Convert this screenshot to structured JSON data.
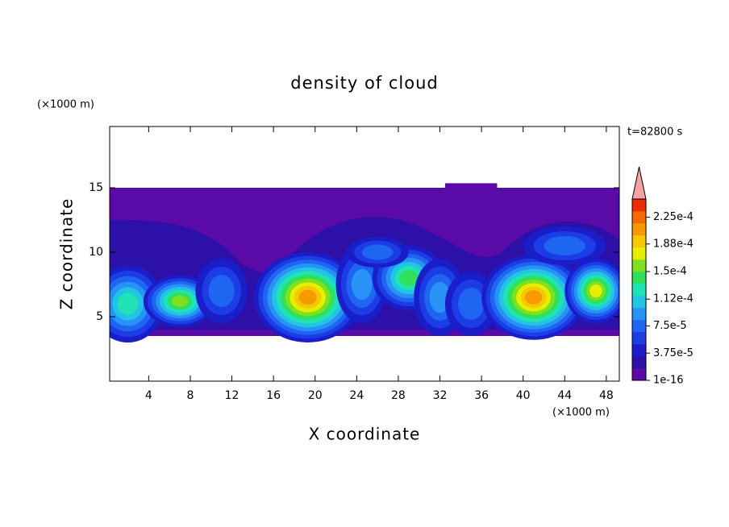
{
  "chart_data": {
    "type": "contour",
    "title": "density of cloud",
    "x_label": "X coordinate",
    "y_label": "Z coordinate",
    "x_unit": "(×1000 m)",
    "y_unit": "(×1000 m)",
    "time_label": "t=82800 s",
    "xlim": [
      0.25,
      49.25
    ],
    "xticks": [
      4,
      8,
      12,
      16,
      20,
      24,
      28,
      32,
      36,
      40,
      44,
      48
    ],
    "ylim": [
      0,
      19.75
    ],
    "yticks": [
      5,
      10,
      15
    ],
    "colorbar": {
      "lim": [
        1e-16,
        0.00025
      ],
      "ticks": [
        1e-16,
        {
          "value": 3.75e-05,
          "label": "3.75e-5"
        },
        {
          "value": 7.5e-05,
          "label": "7.5e-5"
        },
        {
          "value": 0.000112,
          "label": "1.12e-4"
        },
        {
          "value": 0.00015,
          "label": "1.5e-4"
        },
        {
          "value": 0.000188,
          "label": "1.88e-4"
        },
        {
          "value": 0.000225,
          "label": "2.25e-4"
        }
      ],
      "colors": [
        "#5a0aa6",
        "#2c10a8",
        "#1a1ec8",
        "#1c3ce6",
        "#1e66f2",
        "#2892f6",
        "#22c4e6",
        "#20e2b4",
        "#2ee05a",
        "#7ee01e",
        "#e6ee00",
        "#f6c800",
        "#f69a00",
        "#f26a00",
        "#ee2a00"
      ],
      "extend_color": "#f4a4a4"
    }
  }
}
